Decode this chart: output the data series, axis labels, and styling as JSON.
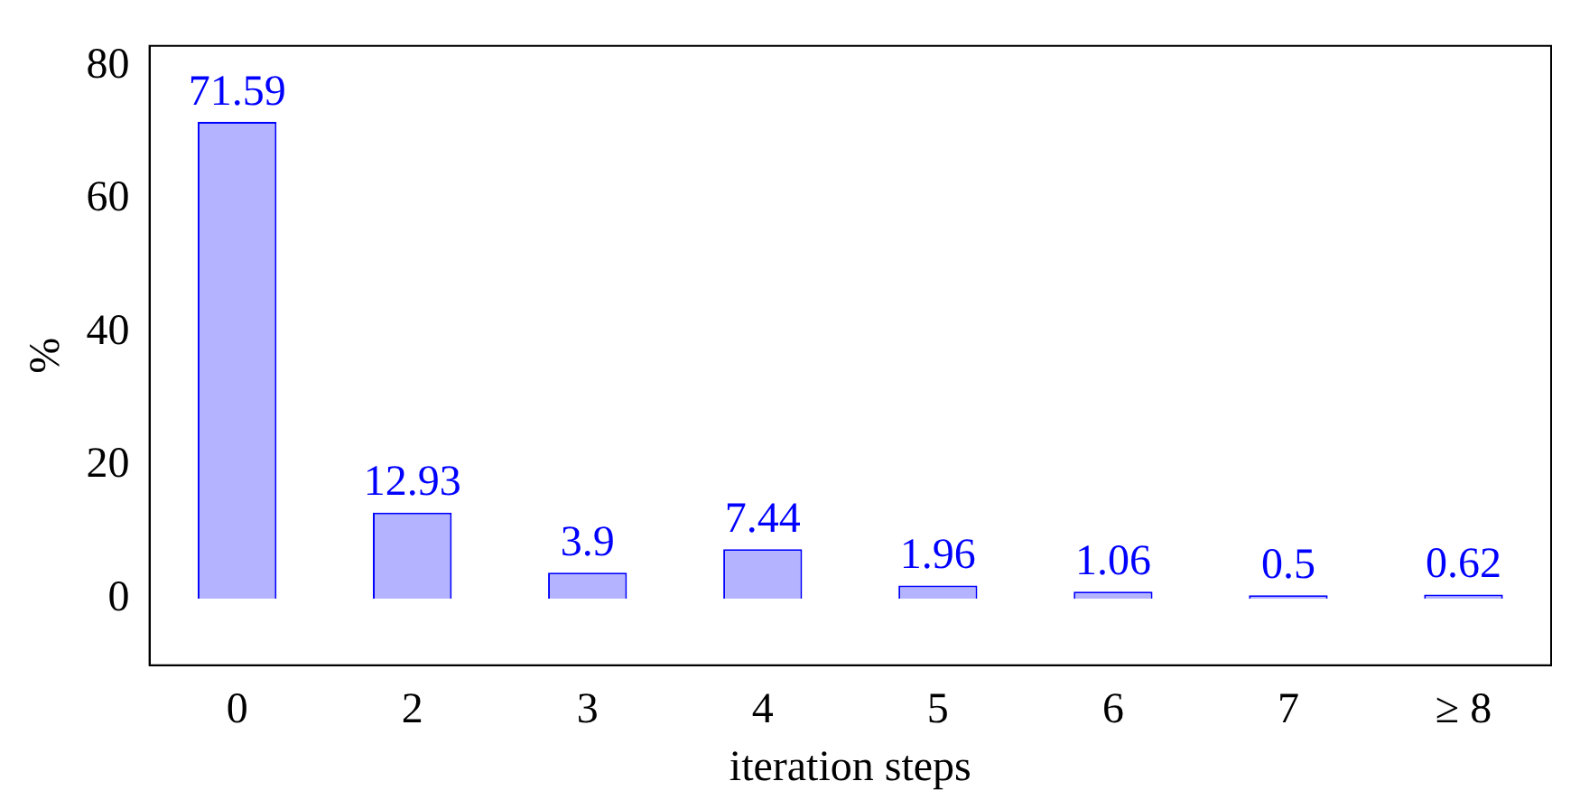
{
  "chart_data": {
    "type": "bar",
    "xlabel": "iteration steps",
    "ylabel": "%",
    "categories": [
      "0",
      "2",
      "3",
      "4",
      "5",
      "6",
      "7",
      "≥ 8"
    ],
    "series": [
      {
        "color": "#b3b3ff",
        "values": [
          71.59,
          12.93,
          3.9,
          7.44,
          1.96,
          1.06,
          0.5,
          0.62
        ]
      }
    ],
    "ylim": [
      -10,
      83
    ],
    "yticks": [
      0,
      20,
      40,
      60,
      80
    ],
    "grid": false,
    "legend": false,
    "data_labels": true
  }
}
